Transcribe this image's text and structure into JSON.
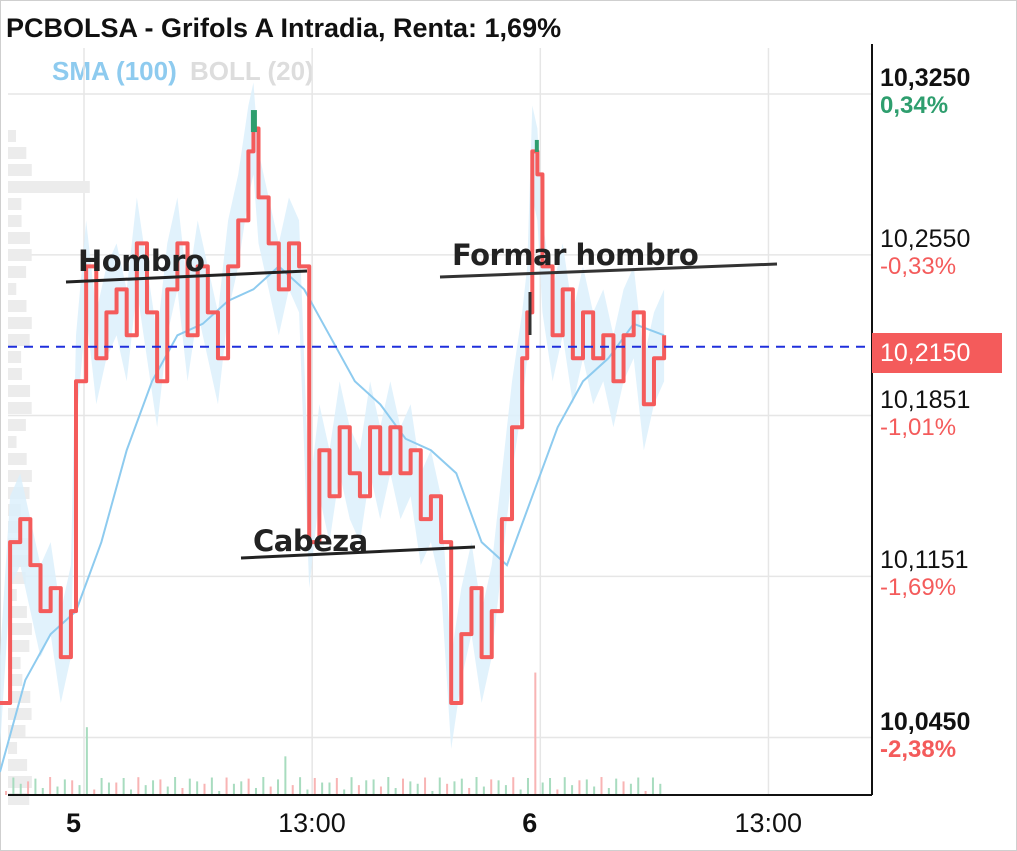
{
  "title": "PCBOLSA - Grifols A Intradia, Renta: 1,69%",
  "indicators": {
    "sma": "SMA (100)",
    "boll": "BOLL (20)"
  },
  "colors": {
    "price": "#f45b5b",
    "sma": "#8ecbef",
    "band": "#dcf0fb",
    "up": "#2e9e6e",
    "down": "#f45b5b",
    "current": "#1f2fdc"
  },
  "y_axis": {
    "ticks": [
      {
        "price": "10,3250",
        "pct": "0,34%",
        "value": 10.325,
        "bold": true,
        "pct_color": "up"
      },
      {
        "price": "10,2550",
        "pct": "-0,33%",
        "value": 10.255,
        "bold": false,
        "pct_color": "down"
      },
      {
        "price": "10,1851",
        "pct": "-1,01%",
        "value": 10.1851,
        "bold": false,
        "pct_color": "down"
      },
      {
        "price": "10,1151",
        "pct": "-1,69%",
        "value": 10.1151,
        "bold": false,
        "pct_color": "down"
      },
      {
        "price": "10,0450",
        "pct": "-2,38%",
        "value": 10.045,
        "bold": true,
        "pct_color": "down"
      }
    ],
    "current_price": "10,2150",
    "current_value": 10.215
  },
  "x_axis": {
    "labels": [
      {
        "text": "5",
        "t": 0,
        "bold": true
      },
      {
        "text": "13:00",
        "t": 4.5,
        "bold": false
      },
      {
        "text": "6",
        "t": 9,
        "bold": true
      },
      {
        "text": "13:00",
        "t": 13.5,
        "bold": false
      }
    ]
  },
  "annotations": [
    {
      "text": "Hombro",
      "id": "hombro"
    },
    {
      "text": "Formar hombro",
      "id": "formar-hombro"
    },
    {
      "text": "Cabeza",
      "id": "cabeza"
    }
  ],
  "chart_data": {
    "type": "line",
    "title": "PCBOLSA - Grifols A Intradia, Renta: 1,69%",
    "ylim": [
      10.02,
      10.345
    ],
    "x_unit": "hours since 09:00 day 5 (session break compressed)",
    "series": [
      {
        "name": "",
        "values": [
          [
            -1.5,
            10.06
          ],
          [
            -1.3,
            10.13
          ],
          [
            -1.1,
            10.14
          ],
          [
            -0.9,
            10.12
          ],
          [
            -0.7,
            10.1
          ],
          [
            -0.5,
            10.11
          ],
          [
            -0.3,
            10.08
          ],
          [
            -0.1,
            10.1
          ],
          [
            0.0,
            10.2
          ],
          [
            0.2,
            10.25
          ],
          [
            0.4,
            10.21
          ],
          [
            0.6,
            10.23
          ],
          [
            0.8,
            10.24
          ],
          [
            1.0,
            10.22
          ],
          [
            1.2,
            10.26
          ],
          [
            1.4,
            10.23
          ],
          [
            1.6,
            10.2
          ],
          [
            1.8,
            10.24
          ],
          [
            2.0,
            10.26
          ],
          [
            2.2,
            10.22
          ],
          [
            2.4,
            10.25
          ],
          [
            2.6,
            10.23
          ],
          [
            2.8,
            10.21
          ],
          [
            3.0,
            10.25
          ],
          [
            3.2,
            10.27
          ],
          [
            3.4,
            10.3
          ],
          [
            3.5,
            10.31
          ],
          [
            3.6,
            10.28
          ],
          [
            3.8,
            10.26
          ],
          [
            4.0,
            10.24
          ],
          [
            4.2,
            10.26
          ],
          [
            4.4,
            10.25
          ],
          [
            4.6,
            10.13
          ],
          [
            4.8,
            10.17
          ],
          [
            5.0,
            10.15
          ],
          [
            5.2,
            10.18
          ],
          [
            5.4,
            10.16
          ],
          [
            5.6,
            10.15
          ],
          [
            5.8,
            10.18
          ],
          [
            6.0,
            10.16
          ],
          [
            6.2,
            10.18
          ],
          [
            6.4,
            10.16
          ],
          [
            6.6,
            10.17
          ],
          [
            6.8,
            10.14
          ],
          [
            7.0,
            10.15
          ],
          [
            7.2,
            10.13
          ],
          [
            7.4,
            10.06
          ],
          [
            7.6,
            10.09
          ],
          [
            7.8,
            10.11
          ],
          [
            8.0,
            10.08
          ],
          [
            8.2,
            10.1
          ],
          [
            8.4,
            10.14
          ],
          [
            8.6,
            10.18
          ],
          [
            8.8,
            10.21
          ],
          [
            8.9,
            10.23
          ],
          [
            9.0,
            10.3
          ],
          [
            9.1,
            10.29
          ],
          [
            9.2,
            10.25
          ],
          [
            9.4,
            10.22
          ],
          [
            9.6,
            10.24
          ],
          [
            9.8,
            10.21
          ],
          [
            10.0,
            10.23
          ],
          [
            10.2,
            10.21
          ],
          [
            10.4,
            10.22
          ],
          [
            10.6,
            10.2
          ],
          [
            10.8,
            10.22
          ],
          [
            11.0,
            10.23
          ],
          [
            11.2,
            10.19
          ],
          [
            11.4,
            10.21
          ],
          [
            11.6,
            10.22
          ]
        ]
      },
      {
        "name": "SMA (100)",
        "values": [
          [
            -1.5,
            10.03
          ],
          [
            -1.0,
            10.07
          ],
          [
            -0.5,
            10.09
          ],
          [
            0.0,
            10.1
          ],
          [
            0.5,
            10.13
          ],
          [
            1.0,
            10.17
          ],
          [
            1.5,
            10.2
          ],
          [
            2.0,
            10.22
          ],
          [
            2.5,
            10.225
          ],
          [
            3.0,
            10.235
          ],
          [
            3.5,
            10.24
          ],
          [
            4.0,
            10.25
          ],
          [
            4.5,
            10.24
          ],
          [
            5.0,
            10.22
          ],
          [
            5.5,
            10.2
          ],
          [
            6.0,
            10.19
          ],
          [
            6.5,
            10.175
          ],
          [
            7.0,
            10.17
          ],
          [
            7.5,
            10.16
          ],
          [
            8.0,
            10.13
          ],
          [
            8.5,
            10.12
          ],
          [
            9.0,
            10.15
          ],
          [
            9.5,
            10.18
          ],
          [
            10.0,
            10.2
          ],
          [
            10.5,
            10.21
          ],
          [
            11.0,
            10.225
          ],
          [
            11.6,
            10.22
          ]
        ]
      }
    ]
  }
}
